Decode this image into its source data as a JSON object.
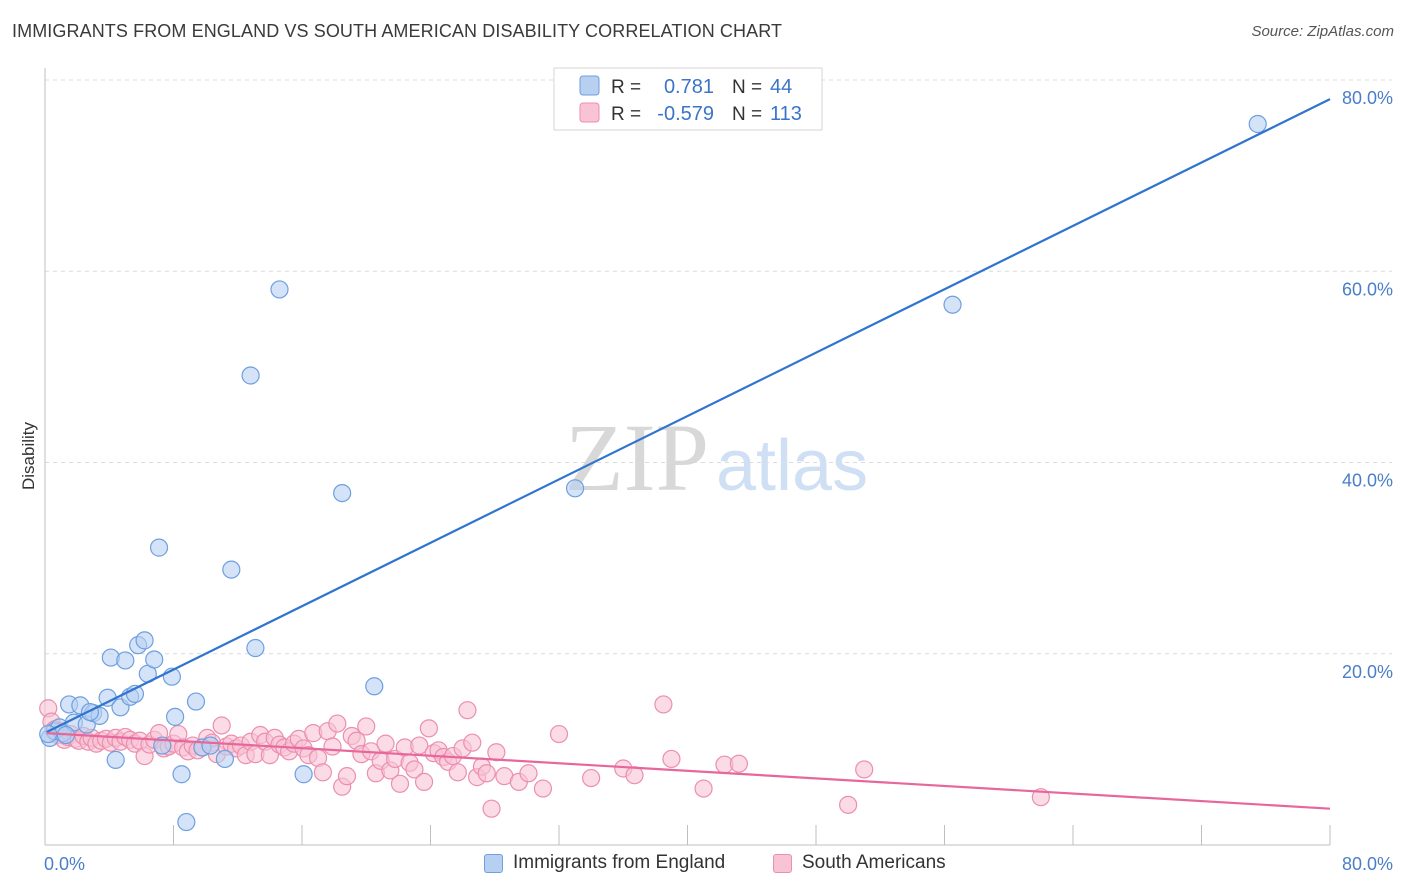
{
  "header": {
    "title": "IMMIGRANTS FROM ENGLAND VS SOUTH AMERICAN DISABILITY CORRELATION CHART",
    "source": "Source: ZipAtlas.com"
  },
  "watermark": {
    "zip": "ZIP",
    "atlas": "atlas"
  },
  "legend": {
    "rows": [
      {
        "r_label": "R =",
        "r_value": "0.781",
        "n_label": "N =",
        "n_value": "44"
      },
      {
        "r_label": "R =",
        "r_value": "-0.579",
        "n_label": "N =",
        "n_value": "113"
      }
    ]
  },
  "bottom_legend": {
    "series1": "Immigrants from England",
    "series2": "South Americans"
  },
  "colors": {
    "blue_fill": "#b7d0f2",
    "blue_stroke": "#6f9fdf",
    "blue_line": "#2f74cf",
    "pink_fill": "#f8c3d4",
    "pink_stroke": "#ec8fae",
    "pink_line": "#e8679a",
    "tick": "#4a7ec9",
    "grid": "#dcdcdc"
  },
  "chart_data": {
    "type": "scatter",
    "title": "IMMIGRANTS FROM ENGLAND VS SOUTH AMERICAN DISABILITY CORRELATION CHART",
    "xlabel": "",
    "ylabel": "Disability",
    "xlim": [
      0,
      80
    ],
    "ylim": [
      0,
      80
    ],
    "x_tick_labels": [
      "0.0%",
      "80.0%"
    ],
    "y_tick_labels": [
      "20.0%",
      "40.0%",
      "60.0%",
      "80.0%"
    ],
    "y_ticks": [
      20,
      40,
      60,
      80
    ],
    "grid": true,
    "legend_position": "top-center",
    "series": [
      {
        "name": "Immigrants from England",
        "r": 0.781,
        "n": 44,
        "trend": [
          [
            0.1,
            11.8
          ],
          [
            80,
            78.0
          ]
        ],
        "points": [
          [
            0.3,
            11.2
          ],
          [
            0.6,
            11.9
          ],
          [
            0.9,
            12.3
          ],
          [
            1.1,
            11.7
          ],
          [
            1.5,
            14.7
          ],
          [
            1.8,
            12.8
          ],
          [
            2.2,
            14.6
          ],
          [
            2.6,
            12.6
          ],
          [
            3.0,
            13.8
          ],
          [
            3.4,
            13.5
          ],
          [
            3.9,
            15.4
          ],
          [
            4.1,
            19.6
          ],
          [
            4.4,
            8.9
          ],
          [
            4.7,
            14.4
          ],
          [
            5.0,
            19.3
          ],
          [
            5.3,
            15.5
          ],
          [
            5.6,
            15.8
          ],
          [
            5.8,
            20.9
          ],
          [
            6.2,
            21.4
          ],
          [
            6.4,
            17.9
          ],
          [
            6.8,
            19.4
          ],
          [
            7.1,
            31.1
          ],
          [
            7.3,
            10.4
          ],
          [
            7.9,
            17.6
          ],
          [
            8.1,
            13.4
          ],
          [
            8.5,
            7.4
          ],
          [
            8.8,
            2.4
          ],
          [
            9.4,
            15.0
          ],
          [
            9.8,
            10.2
          ],
          [
            10.3,
            10.4
          ],
          [
            11.2,
            9.0
          ],
          [
            11.6,
            28.8
          ],
          [
            12.8,
            49.1
          ],
          [
            13.1,
            20.6
          ],
          [
            14.6,
            58.1
          ],
          [
            16.1,
            7.4
          ],
          [
            18.5,
            36.8
          ],
          [
            20.5,
            16.6
          ],
          [
            33.0,
            37.3
          ],
          [
            56.5,
            56.5
          ],
          [
            75.5,
            75.4
          ],
          [
            0.2,
            11.6
          ],
          [
            1.3,
            11.5
          ],
          [
            2.8,
            13.9
          ]
        ]
      },
      {
        "name": "South Americans",
        "r": -0.579,
        "n": 113,
        "trend": [
          [
            0.1,
            11.7
          ],
          [
            80,
            3.8
          ]
        ],
        "points": [
          [
            0.2,
            14.3
          ],
          [
            0.4,
            12.9
          ],
          [
            0.6,
            12.1
          ],
          [
            0.8,
            11.5
          ],
          [
            1.0,
            11.9
          ],
          [
            1.2,
            11.0
          ],
          [
            1.4,
            11.3
          ],
          [
            1.6,
            11.6
          ],
          [
            1.9,
            11.1
          ],
          [
            2.1,
            10.9
          ],
          [
            2.4,
            11.4
          ],
          [
            2.7,
            10.8
          ],
          [
            2.9,
            11.2
          ],
          [
            3.2,
            10.6
          ],
          [
            3.5,
            10.9
          ],
          [
            3.8,
            11.1
          ],
          [
            4.1,
            10.7
          ],
          [
            4.4,
            11.2
          ],
          [
            4.7,
            10.8
          ],
          [
            5.0,
            11.3
          ],
          [
            5.3,
            11.0
          ],
          [
            5.6,
            10.6
          ],
          [
            5.9,
            10.9
          ],
          [
            6.2,
            9.3
          ],
          [
            6.5,
            10.5
          ],
          [
            6.8,
            11.0
          ],
          [
            7.1,
            11.7
          ],
          [
            7.4,
            10.1
          ],
          [
            7.7,
            10.3
          ],
          [
            8.0,
            10.6
          ],
          [
            8.3,
            11.6
          ],
          [
            8.6,
            10.2
          ],
          [
            8.9,
            9.8
          ],
          [
            9.2,
            10.4
          ],
          [
            9.5,
            9.9
          ],
          [
            9.8,
            10.2
          ],
          [
            10.1,
            11.2
          ],
          [
            10.4,
            10.7
          ],
          [
            10.7,
            9.5
          ],
          [
            11.0,
            12.5
          ],
          [
            11.3,
            10.3
          ],
          [
            11.6,
            10.6
          ],
          [
            11.9,
            10.1
          ],
          [
            12.2,
            10.4
          ],
          [
            12.5,
            9.4
          ],
          [
            12.8,
            10.8
          ],
          [
            13.1,
            9.5
          ],
          [
            13.4,
            11.5
          ],
          [
            13.7,
            10.8
          ],
          [
            14.0,
            9.4
          ],
          [
            14.3,
            11.2
          ],
          [
            14.6,
            10.5
          ],
          [
            14.9,
            10.2
          ],
          [
            15.2,
            9.8
          ],
          [
            15.5,
            10.6
          ],
          [
            15.8,
            11.1
          ],
          [
            16.1,
            10.1
          ],
          [
            16.4,
            9.4
          ],
          [
            16.7,
            11.7
          ],
          [
            17.0,
            9.1
          ],
          [
            17.3,
            7.6
          ],
          [
            17.6,
            11.9
          ],
          [
            17.9,
            10.3
          ],
          [
            18.2,
            12.7
          ],
          [
            18.5,
            6.1
          ],
          [
            18.8,
            7.2
          ],
          [
            19.1,
            11.4
          ],
          [
            19.4,
            10.9
          ],
          [
            19.7,
            9.5
          ],
          [
            20.0,
            12.4
          ],
          [
            20.3,
            9.8
          ],
          [
            20.6,
            7.5
          ],
          [
            20.9,
            8.8
          ],
          [
            21.2,
            10.6
          ],
          [
            21.5,
            7.8
          ],
          [
            21.8,
            9.0
          ],
          [
            22.1,
            6.4
          ],
          [
            22.4,
            10.2
          ],
          [
            22.7,
            8.6
          ],
          [
            23.0,
            7.9
          ],
          [
            23.3,
            10.4
          ],
          [
            23.6,
            6.6
          ],
          [
            23.9,
            12.2
          ],
          [
            24.2,
            9.6
          ],
          [
            24.5,
            9.9
          ],
          [
            24.8,
            9.2
          ],
          [
            25.1,
            8.7
          ],
          [
            25.4,
            9.3
          ],
          [
            25.7,
            7.6
          ],
          [
            26.0,
            10.1
          ],
          [
            26.3,
            14.1
          ],
          [
            26.6,
            10.7
          ],
          [
            26.9,
            7.1
          ],
          [
            27.2,
            8.2
          ],
          [
            27.5,
            7.5
          ],
          [
            27.8,
            3.8
          ],
          [
            28.1,
            9.7
          ],
          [
            28.6,
            7.2
          ],
          [
            29.5,
            6.6
          ],
          [
            30.1,
            7.5
          ],
          [
            31.0,
            5.9
          ],
          [
            32.0,
            11.6
          ],
          [
            34.0,
            7.0
          ],
          [
            36.0,
            8.0
          ],
          [
            38.5,
            14.7
          ],
          [
            39.0,
            9.0
          ],
          [
            41.0,
            5.9
          ],
          [
            42.3,
            8.4
          ],
          [
            43.2,
            8.5
          ],
          [
            50.0,
            4.2
          ],
          [
            51.0,
            7.9
          ],
          [
            62.0,
            5.0
          ],
          [
            36.7,
            7.3
          ]
        ]
      }
    ]
  }
}
